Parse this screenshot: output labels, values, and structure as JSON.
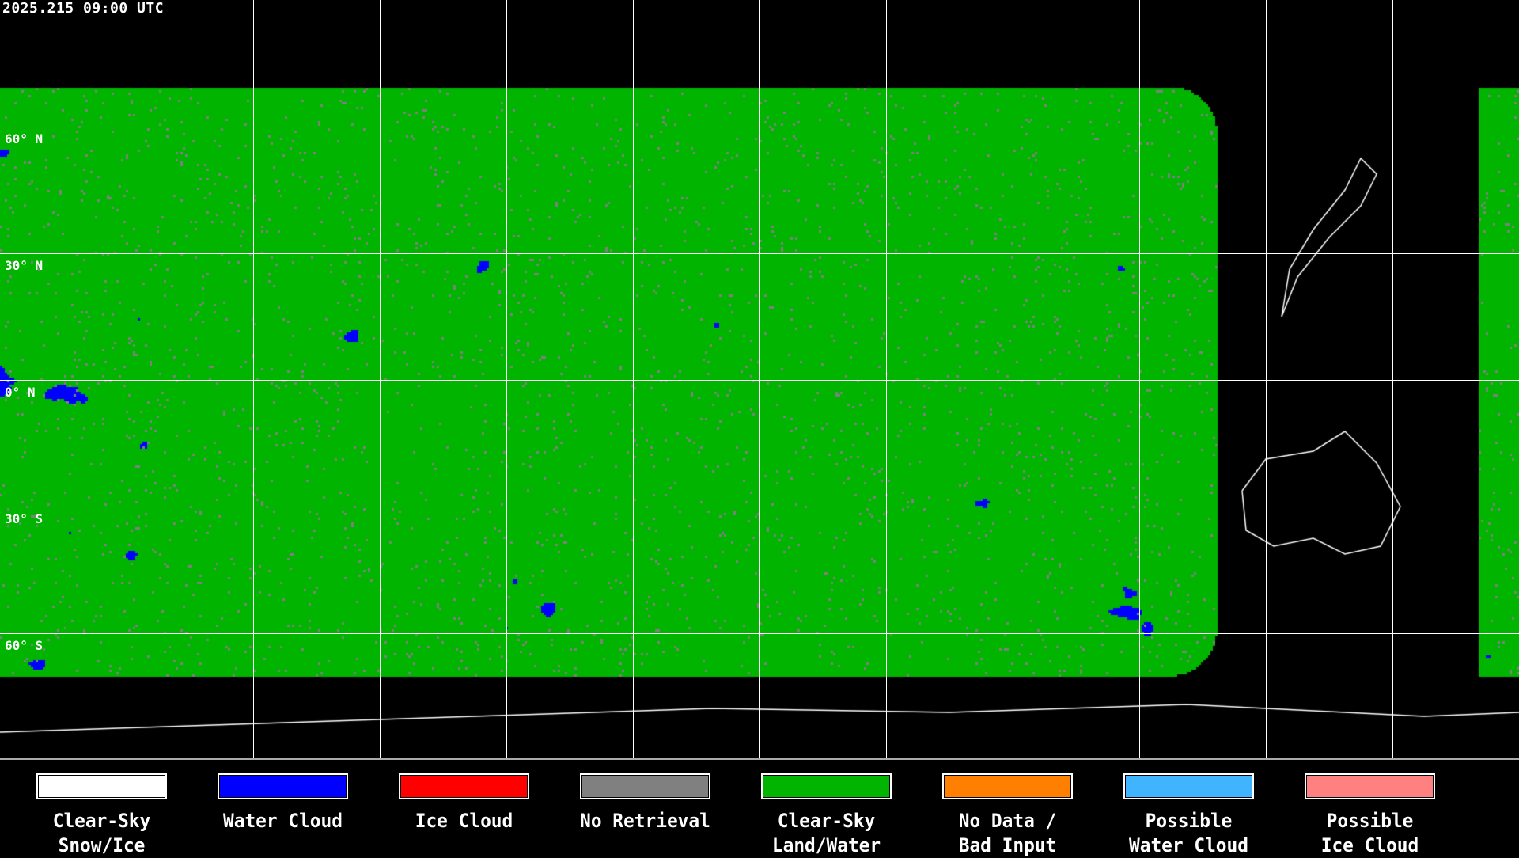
{
  "timestamp": "2025.215 09:00 UTC",
  "lat_labels": [
    "60° N",
    "30° N",
    "0° N",
    "30° S",
    "60° S"
  ],
  "legend": [
    {
      "label": "Clear-Sky\nSnow/Ice",
      "color": "#ffffff"
    },
    {
      "label": "Water Cloud",
      "color": "#0000ff"
    },
    {
      "label": "Ice Cloud",
      "color": "#ff0000"
    },
    {
      "label": "No Retrieval",
      "color": "#808080"
    },
    {
      "label": "Clear-Sky\nLand/Water",
      "color": "#00b400"
    },
    {
      "label": "No Data /\nBad Input",
      "color": "#ff8000"
    },
    {
      "label": "Possible\nWater Cloud",
      "color": "#40b4ff"
    },
    {
      "label": "Possible\nIce Cloud",
      "color": "#ff8080"
    }
  ]
}
